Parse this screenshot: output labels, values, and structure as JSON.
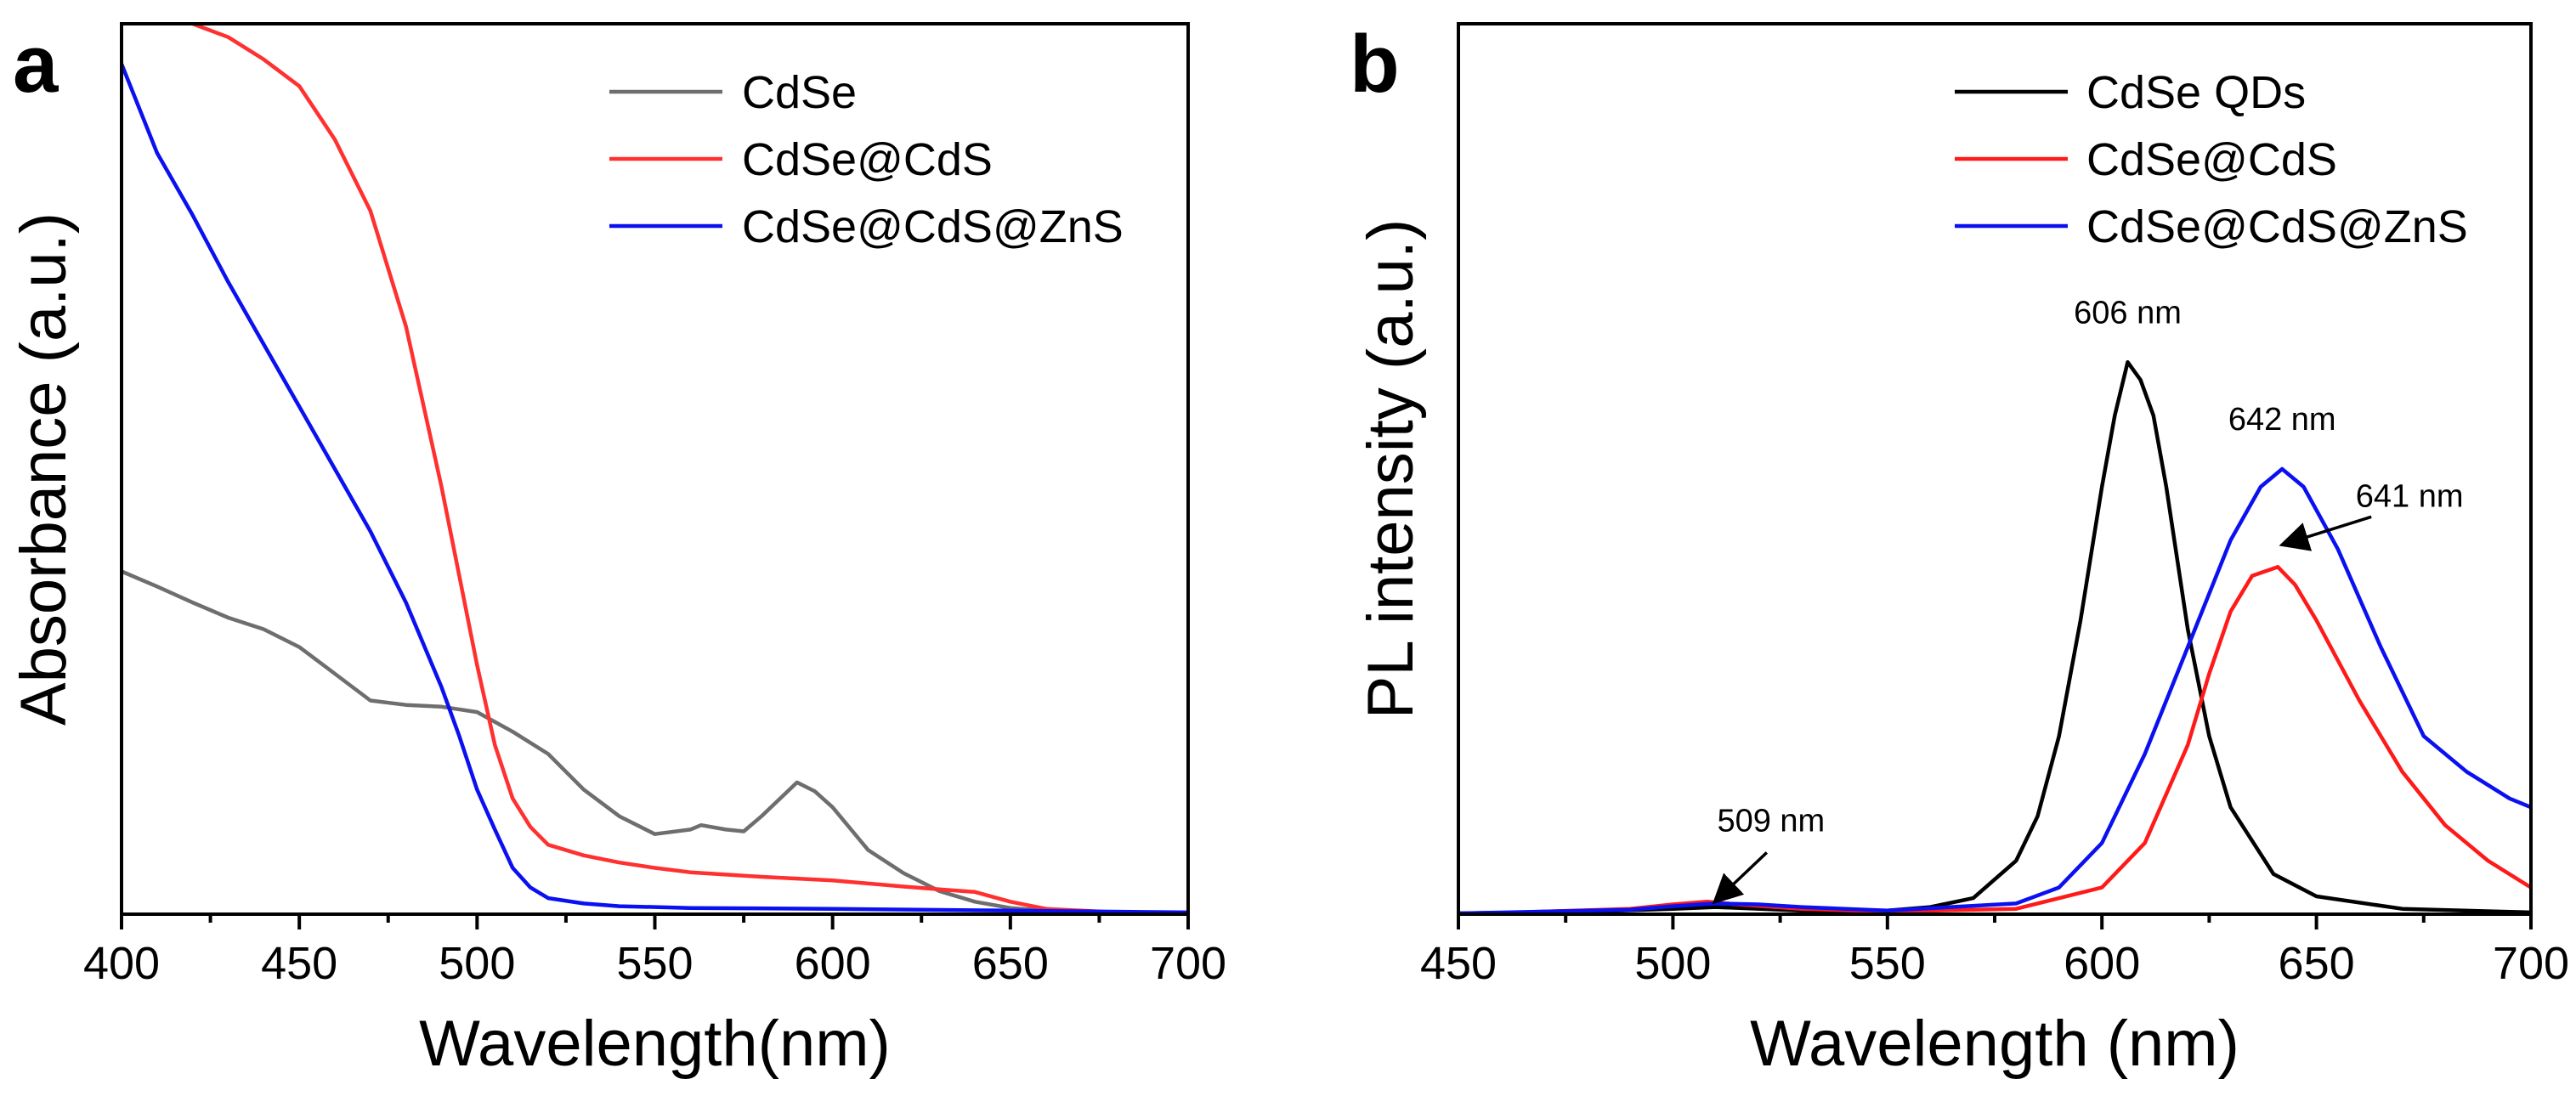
{
  "chart_data": [
    {
      "panel": "a",
      "type": "line",
      "xlabel": "Wavelength(nm)",
      "ylabel": "Absorbance (a.u.)",
      "xlim": [
        400,
        700
      ],
      "ylim": [
        0,
        1.0
      ],
      "xticks": [
        400,
        450,
        500,
        550,
        600,
        650,
        700
      ],
      "xtick_labels": [
        "400",
        "450",
        "500",
        "550",
        "600",
        "650",
        "700"
      ],
      "y_tick_labels_shown": false,
      "grid": false,
      "legend_position": "top-right",
      "series": [
        {
          "name": "CdSe",
          "color": "#6e6e6e",
          "x": [
            400,
            410,
            420,
            430,
            440,
            450,
            460,
            470,
            480,
            490,
            500,
            510,
            520,
            530,
            540,
            550,
            560,
            563,
            570,
            575,
            580,
            590,
            595,
            600,
            610,
            620,
            630,
            640,
            650,
            660,
            680,
            700
          ],
          "y": [
            0.385,
            0.368,
            0.35,
            0.333,
            0.32,
            0.3,
            0.27,
            0.24,
            0.235,
            0.233,
            0.227,
            0.205,
            0.18,
            0.14,
            0.11,
            0.09,
            0.095,
            0.1,
            0.095,
            0.093,
            0.11,
            0.148,
            0.138,
            0.12,
            0.072,
            0.046,
            0.026,
            0.014,
            0.007,
            0.004,
            0.002,
            0.001
          ]
        },
        {
          "name": "CdSe@CdS",
          "color": "#ff3030",
          "x": [
            420,
            430,
            440,
            450,
            460,
            470,
            480,
            490,
            500,
            505,
            510,
            515,
            520,
            530,
            540,
            550,
            560,
            580,
            600,
            620,
            630,
            640,
            650,
            660,
            680,
            700
          ],
          "y": [
            1.0,
            0.985,
            0.96,
            0.93,
            0.87,
            0.79,
            0.66,
            0.48,
            0.28,
            0.19,
            0.13,
            0.098,
            0.078,
            0.066,
            0.058,
            0.052,
            0.047,
            0.042,
            0.038,
            0.031,
            0.028,
            0.025,
            0.014,
            0.006,
            0.002,
            0.001
          ]
        },
        {
          "name": "CdSe@CdS@ZnS",
          "color": "#0a10f0",
          "x": [
            400,
            405,
            410,
            420,
            430,
            440,
            450,
            460,
            470,
            480,
            490,
            495,
            500,
            505,
            510,
            515,
            520,
            530,
            540,
            560,
            600,
            650,
            700
          ],
          "y": [
            0.955,
            0.905,
            0.855,
            0.785,
            0.71,
            0.64,
            0.57,
            0.5,
            0.43,
            0.35,
            0.255,
            0.2,
            0.14,
            0.095,
            0.052,
            0.03,
            0.018,
            0.012,
            0.009,
            0.007,
            0.006,
            0.004,
            0.002
          ]
        }
      ]
    },
    {
      "panel": "b",
      "type": "line",
      "xlabel": "Wavelength (nm)",
      "ylabel": "PL intensity (a.u.)",
      "xlim": [
        450,
        700
      ],
      "ylim": [
        0,
        1.0
      ],
      "xticks": [
        450,
        500,
        550,
        600,
        650,
        700
      ],
      "xtick_labels": [
        "450",
        "500",
        "550",
        "600",
        "650",
        "700"
      ],
      "y_tick_labels_shown": false,
      "grid": false,
      "legend_position": "top-right",
      "annotations": [
        {
          "text": "606 nm",
          "x": 606,
          "y": 0.64
        },
        {
          "text": "642 nm",
          "x": 642,
          "y": 0.52
        },
        {
          "text": "641 nm",
          "x": 641,
          "y": 0.41
        },
        {
          "text": "509 nm",
          "x": 509,
          "y": 0.012
        }
      ],
      "series": [
        {
          "name": "CdSe QDs",
          "color": "#000000",
          "x": [
            450,
            480,
            500,
            510,
            530,
            550,
            560,
            570,
            580,
            585,
            590,
            595,
            600,
            603,
            606,
            609,
            612,
            615,
            620,
            625,
            630,
            640,
            650,
            670,
            700
          ],
          "y": [
            0.001,
            0.003,
            0.006,
            0.008,
            0.004,
            0.004,
            0.008,
            0.018,
            0.06,
            0.11,
            0.2,
            0.33,
            0.48,
            0.56,
            0.62,
            0.6,
            0.56,
            0.48,
            0.32,
            0.2,
            0.12,
            0.045,
            0.02,
            0.006,
            0.002
          ]
        },
        {
          "name": "CdSe@CdS",
          "color": "#ff1a1a",
          "x": [
            450,
            490,
            500,
            508,
            515,
            530,
            550,
            580,
            600,
            610,
            620,
            625,
            630,
            635,
            641,
            645,
            650,
            660,
            670,
            680,
            690,
            700
          ],
          "y": [
            0.0,
            0.006,
            0.011,
            0.014,
            0.011,
            0.006,
            0.003,
            0.006,
            0.03,
            0.08,
            0.19,
            0.27,
            0.34,
            0.38,
            0.39,
            0.37,
            0.33,
            0.24,
            0.16,
            0.1,
            0.06,
            0.03
          ]
        },
        {
          "name": "CdSe@CdS@ZnS",
          "color": "#0a10f0",
          "x": [
            450,
            490,
            500,
            510,
            520,
            530,
            550,
            580,
            590,
            600,
            610,
            620,
            630,
            637,
            642,
            647,
            655,
            665,
            675,
            685,
            695,
            700
          ],
          "y": [
            0.001,
            0.005,
            0.009,
            0.012,
            0.011,
            0.008,
            0.004,
            0.012,
            0.03,
            0.08,
            0.18,
            0.3,
            0.42,
            0.48,
            0.5,
            0.48,
            0.41,
            0.3,
            0.2,
            0.16,
            0.13,
            0.12
          ]
        }
      ]
    }
  ]
}
